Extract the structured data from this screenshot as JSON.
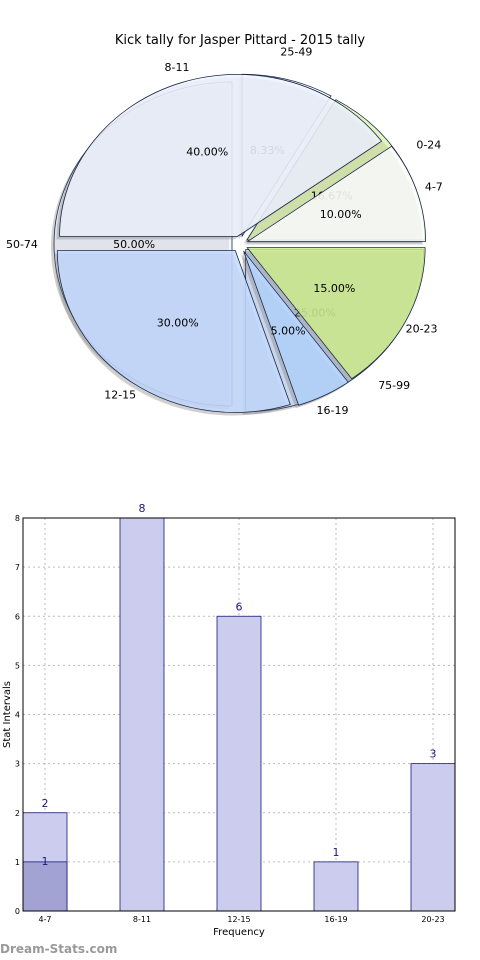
{
  "chart_data": [
    {
      "type": "pie",
      "title": "Kick tally for Jasper Pittard - 2015 tally",
      "layers": [
        {
          "name": "outer",
          "slices": [
            {
              "label": "0-24",
              "value": 16.67,
              "pct": "16.67%",
              "color": "#cdeb8b"
            },
            {
              "label": "25-49",
              "value": 8.33,
              "pct": "8.33%",
              "color": "#ffffff"
            },
            {
              "label": "50-74",
              "value": 50.0,
              "pct": "50.00%",
              "color": "#eef3ff"
            },
            {
              "label": "75-99",
              "value": 25.0,
              "pct": "25.00%",
              "color": "#c3d9ff"
            }
          ]
        },
        {
          "name": "inner",
          "slices": [
            {
              "label": "4-7",
              "value": 10.0,
              "pct": "10.00%",
              "color": "#ffffff"
            },
            {
              "label": "8-11",
              "value": 40.0,
              "pct": "40.00%",
              "color": "#eef3ff"
            },
            {
              "label": "12-15",
              "value": 30.0,
              "pct": "30.00%",
              "color": "#c3d9ff"
            },
            {
              "label": "16-19",
              "value": 5.0,
              "pct": "5.00%",
              "color": "#b3d3ff"
            },
            {
              "label": "20-23",
              "value": 15.0,
              "pct": "15.00%",
              "color": "#cdeb8b"
            }
          ]
        }
      ]
    },
    {
      "type": "bar",
      "categories": [
        "4-7",
        "8-11",
        "12-15",
        "16-19",
        "20-23"
      ],
      "series": [
        {
          "values": [
            2,
            8,
            6,
            1,
            3
          ],
          "color": "#ccccee"
        },
        {
          "values": [
            1,
            0,
            0,
            0,
            0
          ],
          "color": "#a3a3d3"
        }
      ],
      "value_labels": [
        "2",
        "8",
        "6",
        "1",
        "3"
      ],
      "inner_label": "1",
      "xlabel": "Frequency",
      "ylabel": "Stat Intervals",
      "yticks": [
        "0",
        "1",
        "2",
        "3",
        "4",
        "5",
        "6",
        "7",
        "8"
      ],
      "ylim": [
        0,
        8
      ],
      "grid": true
    }
  ],
  "watermark": "Dream-Stats.com"
}
